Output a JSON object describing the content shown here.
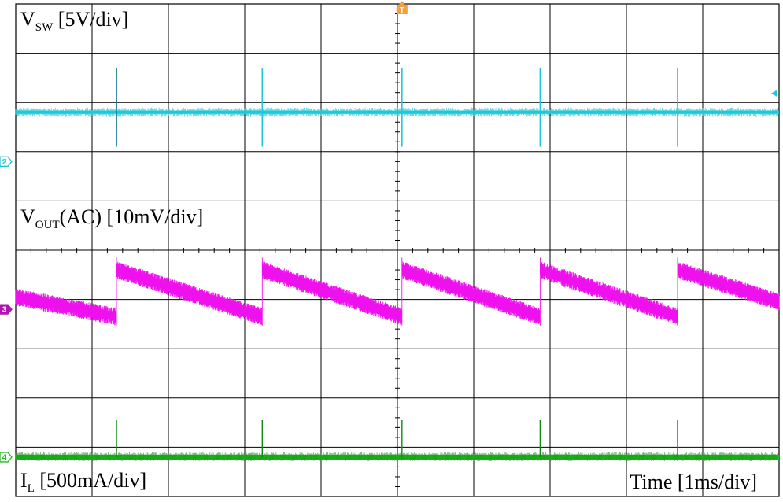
{
  "chart_data": {
    "type": "line",
    "title": "",
    "grid": true,
    "x_divisions": 10,
    "y_divisions": 10,
    "x_range": [
      0,
      10
    ],
    "x_unit": "div",
    "trigger_label": "T",
    "time_scale": "Time [1ms/div]",
    "switch_times_div": [
      1.32,
      3.23,
      5.06,
      6.87,
      8.67
    ],
    "series": [
      {
        "name": "VSW",
        "channel": "2",
        "label_main": "V",
        "label_sub": "SW",
        "label_rest": " [5V/div]",
        "color": "#1ec8d8",
        "marker_color": "#1ec8d8",
        "ground_div": 3.2,
        "baseline_div": 2.2,
        "spike_up_div": 0.9,
        "spike_down_div": 0.7
      },
      {
        "name": "VOUT(AC)",
        "channel": "3",
        "label_main": "V",
        "label_sub": "OUT",
        "label_rest": "(AC) [10mV/div]",
        "color": "#ee11ee",
        "marker_color": "#b015b0",
        "ground_div": 6.2,
        "start_div": 5.95,
        "jump_top_div": 5.4,
        "drop_bottom_div": 6.35,
        "noise_div": 0.18
      },
      {
        "name": "IL",
        "channel": "4",
        "label_main": "I",
        "label_sub": "L",
        "label_rest": " [500mA/div]",
        "color": "#22cc22",
        "marker_color": "#22bb22",
        "ground_div": 9.2,
        "baseline_div": 9.2,
        "spike_up_div": 0.75
      }
    ]
  }
}
